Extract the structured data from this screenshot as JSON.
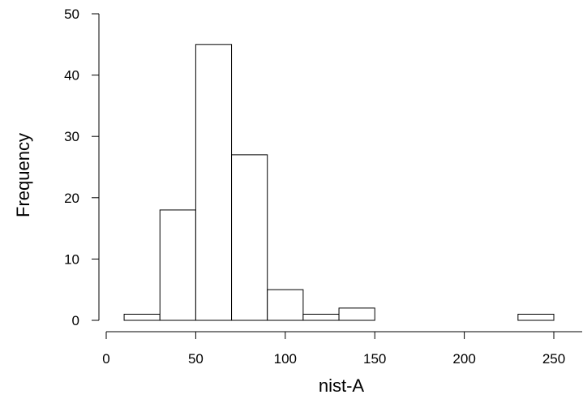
{
  "chart_data": {
    "type": "bar",
    "title": "",
    "xlabel": "nist-A",
    "ylabel": "Frequency",
    "bin_edges": [
      10,
      30,
      50,
      70,
      90,
      110,
      130,
      150,
      170,
      190,
      210,
      230,
      250
    ],
    "values": [
      1,
      18,
      45,
      27,
      5,
      1,
      2,
      0,
      0,
      0,
      0,
      1
    ],
    "xlim": [
      0,
      260
    ],
    "ylim": [
      0,
      50
    ],
    "xticks": [
      0,
      50,
      100,
      150,
      200,
      250
    ],
    "yticks": [
      0,
      10,
      20,
      30,
      40,
      50
    ],
    "xtick_labels": [
      "0",
      "50",
      "100",
      "150",
      "200",
      "250"
    ],
    "ytick_labels": [
      "0",
      "10",
      "20",
      "30",
      "40",
      "50"
    ],
    "grid": false,
    "legend": false
  }
}
